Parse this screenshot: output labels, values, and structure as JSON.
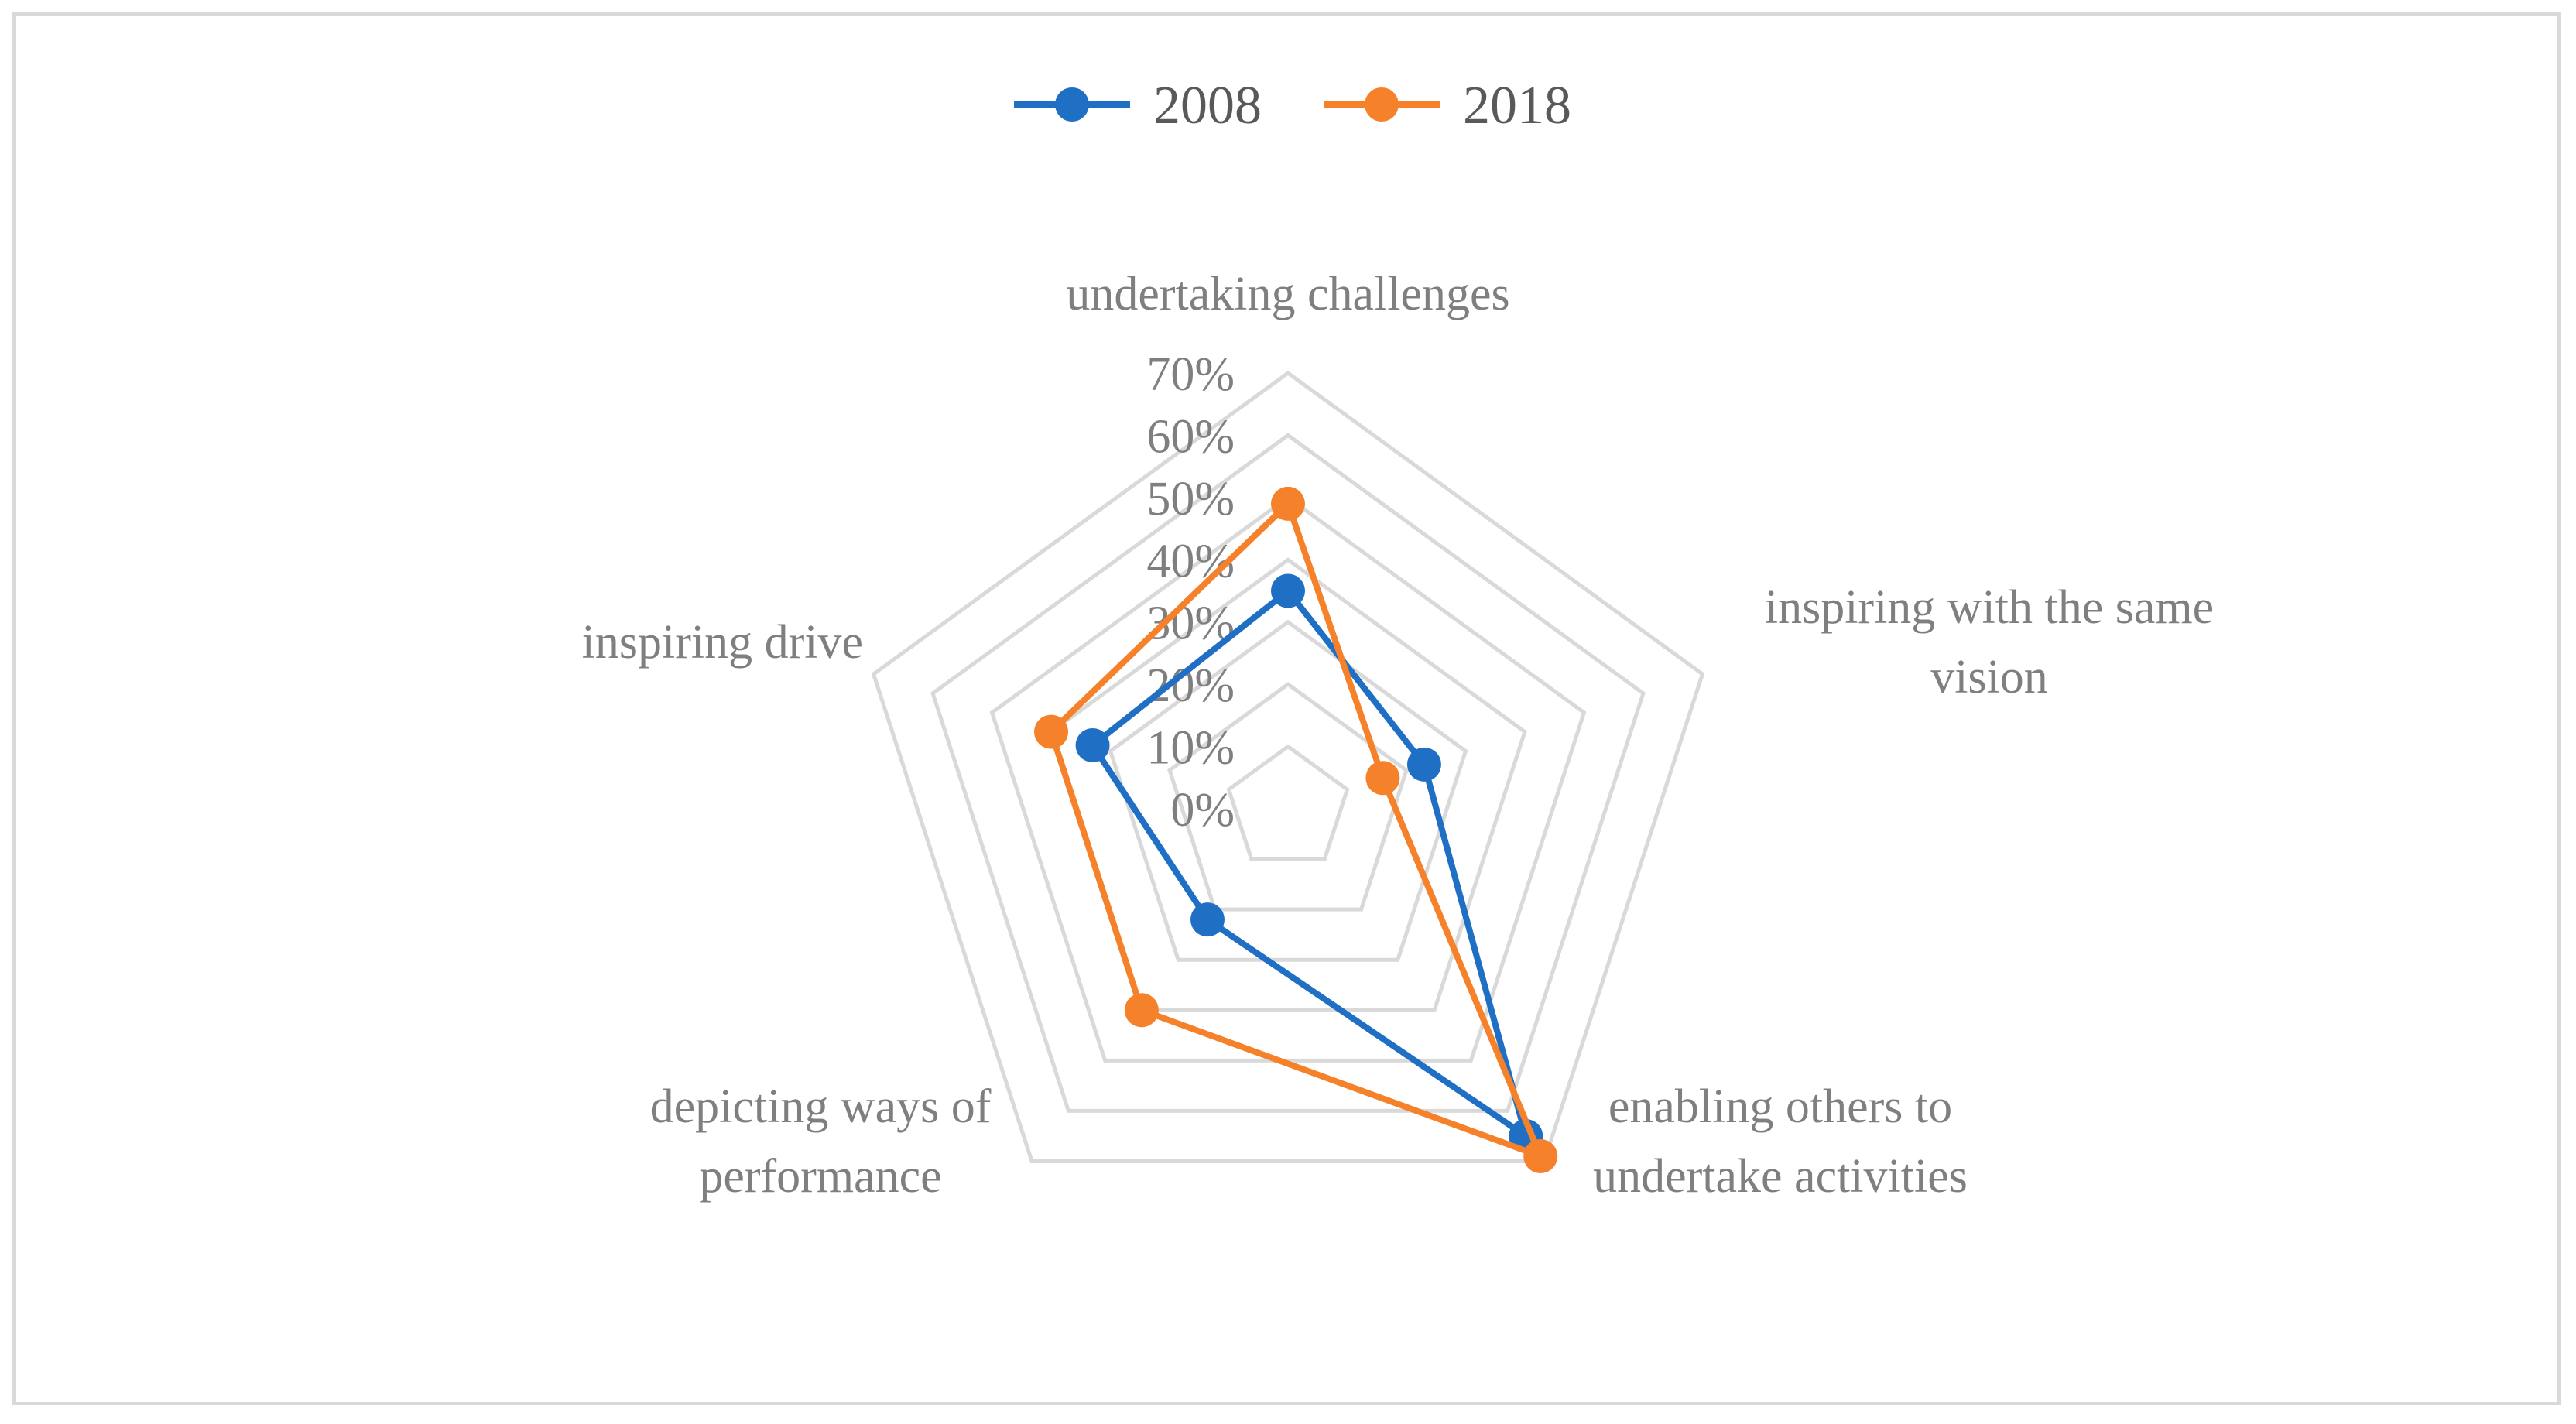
{
  "chart_data": {
    "type": "radar",
    "categories": [
      [
        "undertaking challenges"
      ],
      [
        "inspiring with the same",
        "vision"
      ],
      [
        "enabling others to",
        "undertake activities"
      ],
      [
        "depicting ways of",
        "performance"
      ],
      [
        "inspiring drive"
      ]
    ],
    "series": [
      {
        "name": "2008",
        "values": [
          0.35,
          0.23,
          0.65,
          0.22,
          0.33
        ],
        "color": "#1f6fc5"
      },
      {
        "name": "2018",
        "values": [
          0.49,
          0.16,
          0.69,
          0.4,
          0.4
        ],
        "color": "#f5822a"
      }
    ],
    "rlim": [
      0,
      0.7
    ],
    "ticks": [
      "0%",
      "10%",
      "20%",
      "30%",
      "40%",
      "50%",
      "60%",
      "70%"
    ],
    "grid": true,
    "legend_position": "top"
  }
}
